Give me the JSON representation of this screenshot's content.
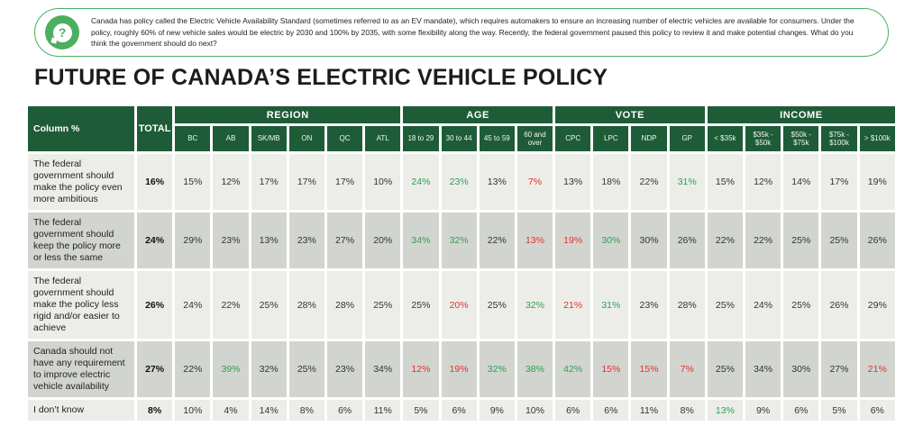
{
  "info_box": {
    "icon": "question-mark-bubble-icon",
    "text": "Canada has policy called the Electric Vehicle Availability Standard (sometimes referred to as an EV mandate), which requires automakers to ensure an increasing number of electric vehicles are available for consumers. Under the policy, roughly 60% of new vehicle sales would be electric by 2030 and 100% by 2035, with some flexibility along the way. Recently, the federal government paused this policy to review it and make potential changes. What do you think the government should do next?"
  },
  "page_title": "FUTURE OF CANADA’S ELECTRIC VEHICLE POLICY",
  "colors": {
    "header_green": "#1e5c38",
    "accent_green": "#4caf5e",
    "positive_green": "#2f9e55",
    "negative_red": "#e03232",
    "row_light": "#ecede8",
    "row_dark": "#d2d5cf"
  },
  "table": {
    "corner_label": "Column %",
    "total_label": "TOTAL",
    "groups": [
      {
        "label": "REGION",
        "columns": [
          "BC",
          "AB",
          "SK/MB",
          "ON",
          "QC",
          "ATL"
        ]
      },
      {
        "label": "AGE",
        "columns": [
          "18 to 29",
          "30 to 44",
          "45 to 59",
          "60 and over"
        ]
      },
      {
        "label": "VOTE",
        "columns": [
          "CPC",
          "LPC",
          "NDP",
          "GP"
        ]
      },
      {
        "label": "INCOME",
        "columns": [
          "< $35k",
          "$35k - $50k",
          "$50k - $75k",
          "$75k - $100k",
          "> $100k"
        ]
      }
    ],
    "rows": [
      {
        "label": "The federal government should make the policy even more ambitious",
        "total": "16%",
        "cells": [
          "15%",
          "12%",
          "17%",
          "17%",
          "17%",
          "10%",
          {
            "v": "24%",
            "c": "green"
          },
          {
            "v": "23%",
            "c": "green"
          },
          "13%",
          {
            "v": "7%",
            "c": "red"
          },
          "13%",
          "18%",
          "22%",
          {
            "v": "31%",
            "c": "green"
          },
          "15%",
          "12%",
          "14%",
          "17%",
          "19%"
        ]
      },
      {
        "label": "The federal government should keep the policy more or less the same",
        "total": "24%",
        "cells": [
          "29%",
          "23%",
          "13%",
          "23%",
          "27%",
          "20%",
          {
            "v": "34%",
            "c": "green"
          },
          {
            "v": "32%",
            "c": "green"
          },
          "22%",
          {
            "v": "13%",
            "c": "red"
          },
          {
            "v": "19%",
            "c": "red"
          },
          {
            "v": "30%",
            "c": "green"
          },
          "30%",
          "26%",
          "22%",
          "22%",
          "25%",
          "25%",
          "26%"
        ]
      },
      {
        "label": "The federal government should make the policy less rigid and/or easier to achieve",
        "total": "26%",
        "cells": [
          "24%",
          "22%",
          "25%",
          "28%",
          "28%",
          "25%",
          "25%",
          {
            "v": "20%",
            "c": "red"
          },
          "25%",
          {
            "v": "32%",
            "c": "green"
          },
          {
            "v": "21%",
            "c": "red"
          },
          {
            "v": "31%",
            "c": "green"
          },
          "23%",
          "28%",
          "25%",
          "24%",
          "25%",
          "26%",
          "29%"
        ]
      },
      {
        "label": "Canada should not have any requirement to improve electric vehicle availability",
        "total": "27%",
        "cells": [
          "22%",
          {
            "v": "39%",
            "c": "green"
          },
          "32%",
          "25%",
          "23%",
          "34%",
          {
            "v": "12%",
            "c": "red"
          },
          {
            "v": "19%",
            "c": "red"
          },
          {
            "v": "32%",
            "c": "green"
          },
          {
            "v": "38%",
            "c": "green"
          },
          {
            "v": "42%",
            "c": "green"
          },
          {
            "v": "15%",
            "c": "red"
          },
          {
            "v": "15%",
            "c": "red"
          },
          {
            "v": "7%",
            "c": "red"
          },
          "25%",
          "34%",
          "30%",
          "27%",
          {
            "v": "21%",
            "c": "red"
          }
        ]
      },
      {
        "label": "I don’t know",
        "total": "8%",
        "cells": [
          "10%",
          "4%",
          "14%",
          "8%",
          "6%",
          "11%",
          "5%",
          "6%",
          "9%",
          "10%",
          "6%",
          "6%",
          "11%",
          "8%",
          {
            "v": "13%",
            "c": "green"
          },
          "9%",
          "6%",
          "5%",
          "6%"
        ]
      }
    ]
  }
}
